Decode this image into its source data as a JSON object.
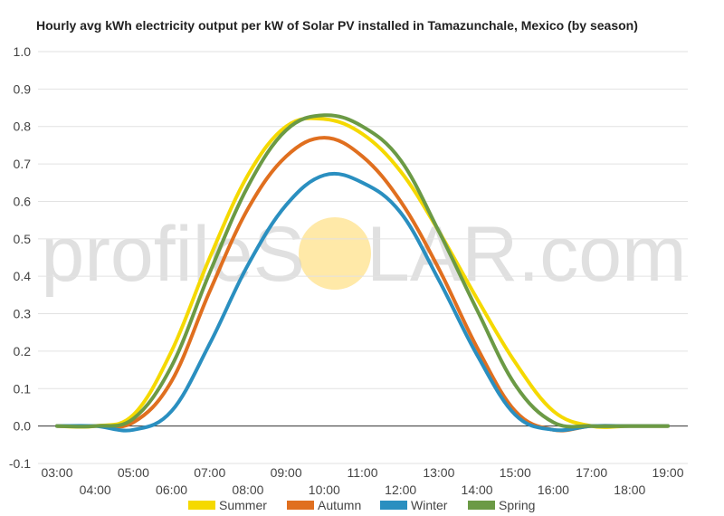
{
  "watermark": {
    "left": "profileS",
    "right": "LAR.com",
    "sun_color": "#ffe9a8"
  },
  "chart_data": {
    "type": "line",
    "title": "Hourly avg kWh electricity output per kW of Solar PV installed in Tamazunchale, Mexico (by season)",
    "xlabel": "",
    "ylabel": "",
    "x": [
      "03:00",
      "04:00",
      "05:00",
      "06:00",
      "07:00",
      "08:00",
      "09:00",
      "10:00",
      "11:00",
      "12:00",
      "13:00",
      "14:00",
      "15:00",
      "16:00",
      "17:00",
      "18:00",
      "19:00"
    ],
    "ylim": [
      -0.1,
      1.0
    ],
    "yticks": [
      "1.0",
      "0.9",
      "0.8",
      "0.7",
      "0.6",
      "0.5",
      "0.4",
      "0.3",
      "0.2",
      "0.1",
      "0.0",
      "-0.1"
    ],
    "grid": true,
    "legend_position": "bottom",
    "series": [
      {
        "name": "Summer",
        "color": "#f5d900",
        "values": [
          0.0,
          0.0,
          0.03,
          0.2,
          0.45,
          0.67,
          0.8,
          0.82,
          0.78,
          0.68,
          0.52,
          0.34,
          0.17,
          0.04,
          0.0,
          0.0,
          0.0
        ]
      },
      {
        "name": "Autumn",
        "color": "#e06f1f",
        "values": [
          0.0,
          0.0,
          0.01,
          0.12,
          0.36,
          0.58,
          0.72,
          0.77,
          0.72,
          0.6,
          0.42,
          0.21,
          0.04,
          -0.01,
          0.0,
          0.0,
          0.0
        ]
      },
      {
        "name": "Winter",
        "color": "#2a8fc0",
        "values": [
          0.0,
          0.0,
          -0.01,
          0.04,
          0.22,
          0.43,
          0.59,
          0.67,
          0.65,
          0.57,
          0.39,
          0.19,
          0.03,
          -0.01,
          0.0,
          0.0,
          0.0
        ]
      },
      {
        "name": "Spring",
        "color": "#6b9a45",
        "values": [
          0.0,
          0.0,
          0.02,
          0.16,
          0.41,
          0.64,
          0.79,
          0.83,
          0.8,
          0.71,
          0.52,
          0.31,
          0.11,
          0.01,
          0.0,
          0.0,
          0.0
        ]
      }
    ]
  }
}
